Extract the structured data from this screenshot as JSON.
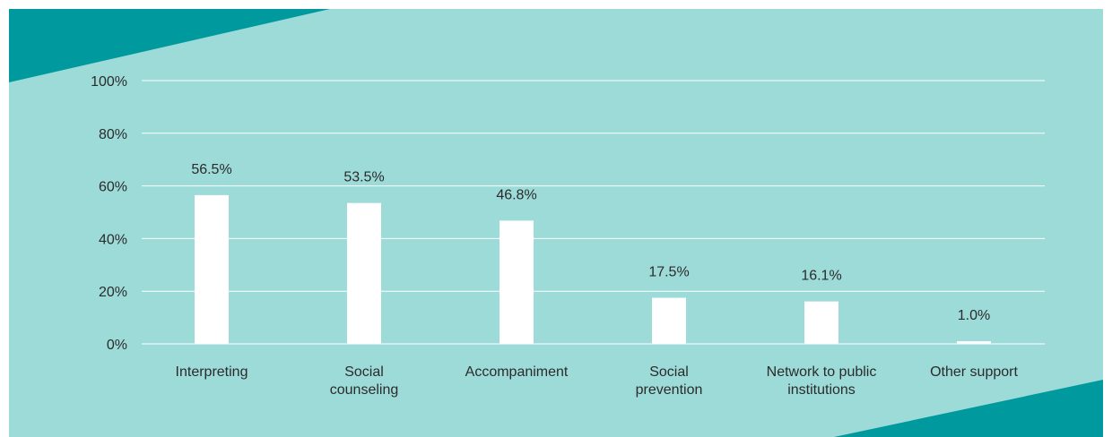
{
  "colors": {
    "panel_bg": "#9ddbd9",
    "accent_teal": "#009a9e",
    "bar_fill": "#ffffff",
    "gridline": "#ffffff",
    "text": "#2b2b2b"
  },
  "chart_data": {
    "type": "bar",
    "categories": [
      "Interpreting",
      "Social counseling",
      "Accompaniment",
      "Social prevention",
      "Network to public institutions",
      "Other support"
    ],
    "category_lines": [
      [
        "Interpreting"
      ],
      [
        "Social",
        "counseling"
      ],
      [
        "Accompaniment"
      ],
      [
        "Social",
        "prevention"
      ],
      [
        "Network to public",
        "institutions"
      ],
      [
        "Other support"
      ]
    ],
    "values": [
      56.5,
      53.5,
      46.8,
      17.5,
      16.1,
      1.0
    ],
    "value_labels": [
      "56.5%",
      "53.5%",
      "46.8%",
      "17.5%",
      "16.1%",
      "1.0%"
    ],
    "ylim": [
      0,
      100
    ],
    "yticks": [
      0,
      20,
      40,
      60,
      80,
      100
    ],
    "ytick_labels": [
      "0%",
      "20%",
      "40%",
      "60%",
      "80%",
      "100%"
    ],
    "grid": true,
    "legend": "none"
  }
}
